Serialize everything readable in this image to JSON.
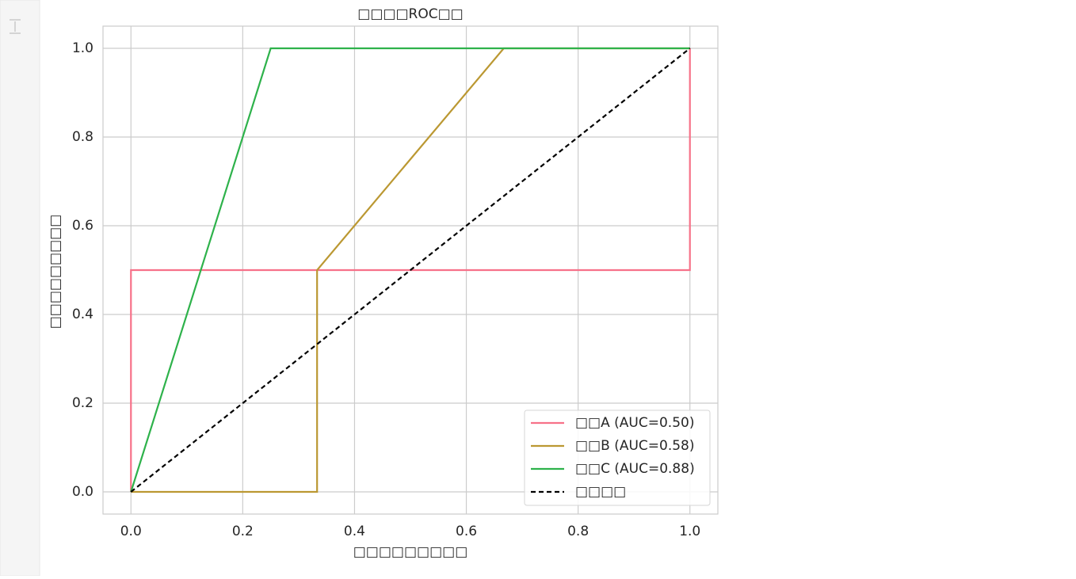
{
  "chart_data": {
    "type": "line",
    "title": "□□□□ROC□□",
    "xlabel": "□□□□□□□□□",
    "ylabel": "□□□□□□□□□",
    "xlim": [
      -0.05,
      1.05
    ],
    "ylim": [
      -0.05,
      1.05
    ],
    "xticks": [
      {
        "value": 0,
        "label": "0.0"
      },
      0.2,
      0.4,
      0.6,
      0.8,
      {
        "value": 1,
        "label": "1.0"
      }
    ],
    "yticks": [
      {
        "value": 0,
        "label": "0.0"
      },
      0.2,
      0.4,
      0.6,
      0.8,
      {
        "value": 1,
        "label": "1.0"
      }
    ],
    "grid": true,
    "legend": "lower right",
    "series": [
      {
        "name": "□□A (AUC=0.50)",
        "color": "#f77189",
        "linestyle": "solid",
        "x": [
          0,
          0,
          1,
          1
        ],
        "values": [
          0,
          0.5,
          0.5,
          1
        ]
      },
      {
        "name": "□□B (AUC=0.58)",
        "color": "#bb9832",
        "linestyle": "solid",
        "x": [
          0,
          0.333,
          0.333,
          0.667,
          1
        ],
        "values": [
          0,
          0,
          0.5,
          1,
          1
        ]
      },
      {
        "name": "□□C (AUC=0.88)",
        "color": "#2eb24b",
        "linestyle": "solid",
        "x": [
          0,
          0.25,
          1
        ],
        "values": [
          0,
          1,
          1
        ]
      },
      {
        "name": "□□□□",
        "color": "#000000",
        "linestyle": "dashed",
        "x": [
          0,
          1
        ],
        "values": [
          0,
          1
        ]
      }
    ]
  }
}
